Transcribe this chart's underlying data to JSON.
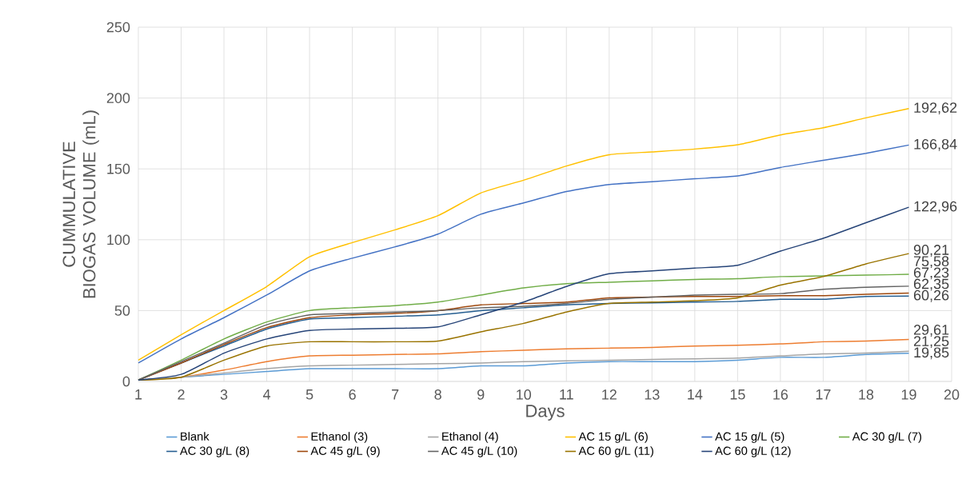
{
  "chart_data": {
    "type": "line",
    "xlabel": "Days",
    "ylabel": "CUMMULATIVE BIOGAS VOLUME (mL)",
    "x": [
      1,
      2,
      3,
      4,
      5,
      6,
      7,
      8,
      9,
      10,
      11,
      12,
      13,
      14,
      15,
      16,
      17,
      18,
      19
    ],
    "xlim": [
      1,
      20
    ],
    "xticks": [
      1,
      2,
      3,
      4,
      5,
      6,
      7,
      8,
      9,
      10,
      11,
      12,
      13,
      14,
      15,
      16,
      17,
      18,
      19,
      20
    ],
    "ylim": [
      0,
      250
    ],
    "yticks": [
      0,
      50,
      100,
      150,
      200,
      250
    ],
    "grid": true,
    "legend": "bottom",
    "marker": "none",
    "line_style": "solid",
    "series": [
      {
        "name": "Blank",
        "color": "#5b9bd5",
        "values": [
          1,
          3,
          5,
          7,
          9,
          9,
          9,
          9,
          11,
          11,
          13,
          14,
          14,
          14,
          15,
          17,
          17,
          19,
          19.85
        ],
        "value_labels": [
          null,
          null,
          null,
          null,
          null,
          null,
          null,
          null,
          null,
          null,
          null,
          null,
          null,
          null,
          null,
          null,
          null,
          null,
          "19,85"
        ]
      },
      {
        "name": "Ethanol (3)",
        "color": "#ed7d31",
        "values": [
          1,
          3,
          8,
          14,
          18,
          18.5,
          19,
          19.5,
          21,
          22,
          23,
          23.5,
          24,
          25,
          25.5,
          26.5,
          28,
          28.5,
          29.61
        ],
        "value_labels": [
          null,
          null,
          null,
          null,
          null,
          null,
          null,
          null,
          null,
          null,
          null,
          null,
          null,
          null,
          null,
          null,
          null,
          null,
          "29,61"
        ]
      },
      {
        "name": "Ethanol (4)",
        "color": "#a5a5a5",
        "values": [
          1,
          3,
          6,
          9,
          11,
          11.5,
          12,
          12.5,
          13,
          14,
          14.5,
          15,
          15.5,
          16,
          16.5,
          18,
          19.5,
          20,
          21.25
        ],
        "value_labels": [
          null,
          null,
          null,
          null,
          null,
          null,
          null,
          null,
          null,
          null,
          null,
          null,
          null,
          null,
          null,
          null,
          null,
          null,
          "21,25"
        ]
      },
      {
        "name": "AC 15 g/L (6)",
        "color": "#ffc000",
        "values": [
          15,
          33,
          50,
          67,
          88,
          98,
          107,
          117,
          133,
          142,
          152,
          160,
          162,
          164,
          167,
          174,
          179,
          186,
          192.62
        ],
        "value_labels": [
          null,
          null,
          null,
          null,
          null,
          null,
          null,
          null,
          null,
          null,
          null,
          null,
          null,
          null,
          null,
          null,
          null,
          null,
          "192,62"
        ]
      },
      {
        "name": "AC 15 g/L (5)",
        "color": "#4472c4",
        "values": [
          13,
          30,
          45,
          61,
          78,
          87,
          95,
          104,
          118,
          126,
          134,
          139,
          141,
          143,
          145,
          151,
          156,
          161,
          166.84
        ],
        "value_labels": [
          null,
          null,
          null,
          null,
          null,
          null,
          null,
          null,
          null,
          null,
          null,
          null,
          null,
          null,
          null,
          null,
          null,
          null,
          "166,84"
        ]
      },
      {
        "name": "AC 30 g/L (7)",
        "color": "#70ad47",
        "values": [
          1,
          15,
          30,
          42,
          50,
          52,
          53.5,
          56,
          61,
          66,
          69,
          70,
          71,
          72,
          72.5,
          74,
          74.5,
          75,
          75.58
        ],
        "value_labels": [
          null,
          null,
          null,
          null,
          null,
          null,
          null,
          null,
          null,
          null,
          null,
          null,
          null,
          null,
          null,
          null,
          null,
          null,
          "75,58"
        ]
      },
      {
        "name": "AC 30 g/L (8)",
        "color": "#255e91",
        "values": [
          1,
          13,
          25,
          37,
          44,
          45,
          46,
          47,
          50,
          52,
          54,
          55,
          55.5,
          56,
          56.5,
          58,
          58,
          60,
          60.26
        ],
        "value_labels": [
          null,
          null,
          null,
          null,
          null,
          null,
          null,
          null,
          null,
          null,
          null,
          null,
          null,
          null,
          null,
          null,
          null,
          null,
          "60,26"
        ]
      },
      {
        "name": "AC 45 g/L (9)",
        "color": "#9e480e",
        "values": [
          1,
          13,
          26,
          38,
          45,
          47,
          48,
          50,
          54,
          55,
          56,
          59,
          59.5,
          60,
          60,
          60.5,
          60.5,
          61.5,
          62.35
        ],
        "value_labels": [
          null,
          null,
          null,
          null,
          null,
          null,
          null,
          null,
          null,
          null,
          null,
          null,
          null,
          null,
          null,
          null,
          null,
          null,
          "62,35"
        ]
      },
      {
        "name": "AC 45 g/L (10)",
        "color": "#636363",
        "values": [
          1,
          14,
          27,
          40,
          47,
          48,
          49,
          50,
          52,
          53,
          55,
          58,
          59.5,
          61,
          61.5,
          62,
          65,
          66.5,
          67.23
        ],
        "value_labels": [
          null,
          null,
          null,
          null,
          null,
          null,
          null,
          null,
          null,
          null,
          null,
          null,
          null,
          null,
          null,
          null,
          null,
          null,
          "67,23"
        ]
      },
      {
        "name": "AC 60 g/L (11)",
        "color": "#997300",
        "values": [
          1,
          3,
          15,
          25,
          28,
          28,
          28,
          28.5,
          35,
          41,
          49,
          55,
          56,
          57,
          59,
          68,
          74,
          83,
          90.21
        ],
        "value_labels": [
          null,
          null,
          null,
          null,
          null,
          null,
          null,
          null,
          null,
          null,
          null,
          null,
          null,
          null,
          null,
          null,
          null,
          null,
          "90,21"
        ]
      },
      {
        "name": "AC 60 g/L (12)",
        "color": "#264478",
        "values": [
          1,
          5,
          20,
          30,
          36,
          37,
          37.5,
          38.5,
          47,
          56,
          67,
          76,
          78,
          80,
          82,
          92,
          101,
          112,
          122.96
        ],
        "value_labels": [
          null,
          null,
          null,
          null,
          null,
          null,
          null,
          null,
          null,
          null,
          null,
          null,
          null,
          null,
          null,
          null,
          null,
          null,
          "122,96"
        ]
      }
    ]
  }
}
